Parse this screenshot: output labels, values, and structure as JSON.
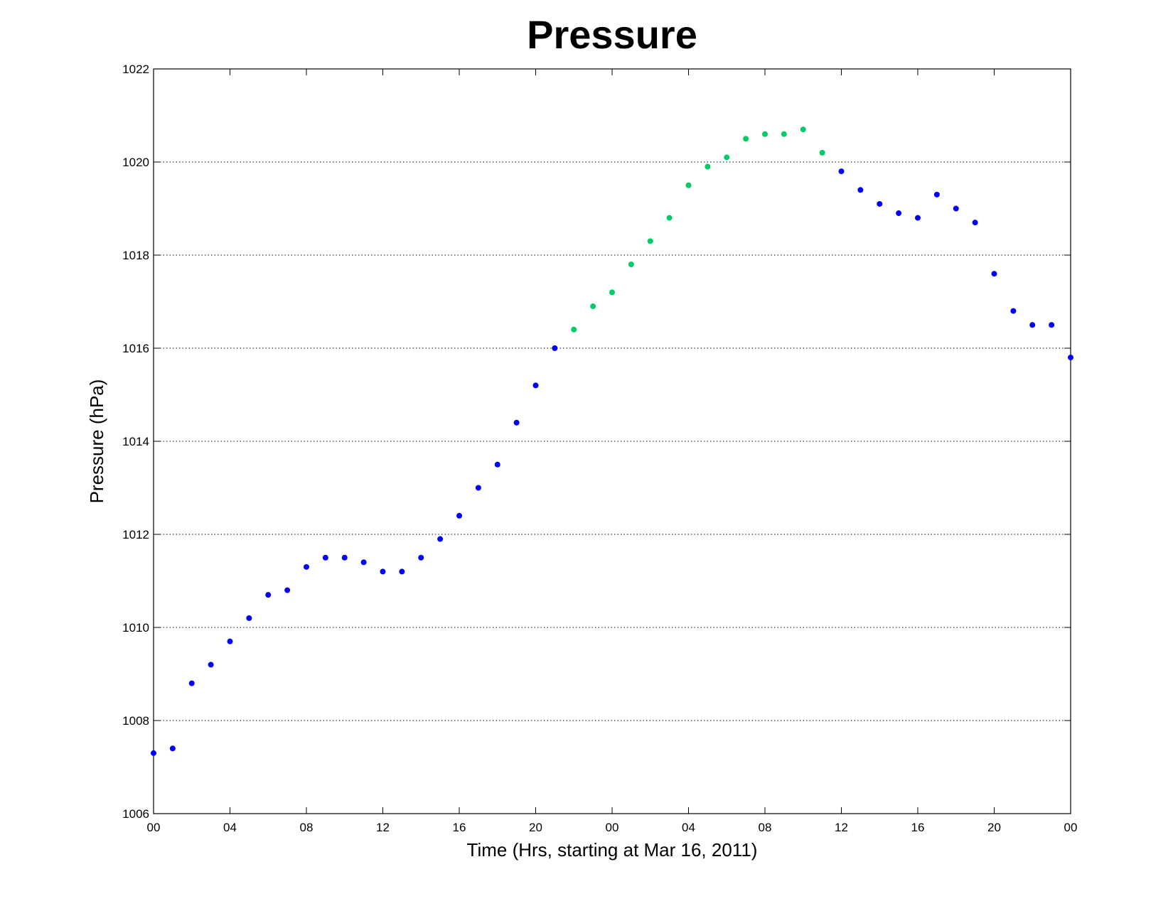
{
  "chart_data": {
    "type": "scatter",
    "title": "Pressure",
    "xlabel": "Time (Hrs, starting at Mar 16, 2011)",
    "ylabel": "Pressure (hPa)",
    "xlim": [
      0,
      48
    ],
    "ylim": [
      1006,
      1022
    ],
    "x_ticks": [
      0,
      4,
      8,
      12,
      16,
      20,
      24,
      28,
      32,
      36,
      40,
      44,
      48
    ],
    "x_tick_labels": [
      "00",
      "04",
      "08",
      "12",
      "16",
      "20",
      "00",
      "04",
      "08",
      "12",
      "16",
      "20",
      "00"
    ],
    "y_ticks": [
      1006,
      1008,
      1010,
      1012,
      1014,
      1016,
      1018,
      1020,
      1022
    ],
    "y_tick_labels": [
      "1006",
      "1008",
      "1010",
      "1012",
      "1014",
      "1016",
      "1018",
      "1020",
      "1022"
    ],
    "grid": "horizontal dotted",
    "x": [
      0,
      1,
      2,
      3,
      4,
      5,
      6,
      7,
      8,
      9,
      10,
      11,
      12,
      13,
      14,
      15,
      16,
      17,
      18,
      19,
      20,
      21,
      22,
      23,
      24,
      25,
      26,
      27,
      28,
      29,
      30,
      31,
      32,
      33,
      34,
      35,
      36,
      37,
      38,
      39,
      40,
      41,
      42,
      43,
      44,
      45,
      46,
      47,
      48
    ],
    "y": [
      1007.3,
      1007.4,
      1008.8,
      1009.2,
      1009.7,
      1010.2,
      1010.7,
      1010.8,
      1011.3,
      1011.5,
      1011.5,
      1011.4,
      1011.2,
      1011.2,
      1011.5,
      1011.9,
      1012.4,
      1013.0,
      1013.5,
      1014.4,
      1015.2,
      1016.0,
      1016.4,
      1016.9,
      1017.2,
      1017.8,
      1018.3,
      1018.8,
      1019.5,
      1019.9,
      1020.1,
      1020.5,
      1020.6,
      1020.6,
      1020.7,
      1020.2,
      1019.8,
      1019.4,
      1019.1,
      1018.9,
      1018.8,
      1019.3,
      1019.0,
      1018.7,
      1017.6,
      1016.8,
      1016.5,
      1016.5,
      1015.8
    ],
    "point_colors": [
      "#0000ff",
      "#0000ff",
      "#0000ff",
      "#0000ff",
      "#0000ff",
      "#0000ff",
      "#0000ff",
      "#0000ff",
      "#0000ff",
      "#0000ff",
      "#0000ff",
      "#0000ff",
      "#0000ff",
      "#0000ff",
      "#0000ff",
      "#0000ff",
      "#0000ff",
      "#0000ff",
      "#0000ff",
      "#0000ff",
      "#0000ff",
      "#0000ff",
      "#00cc66",
      "#00cc66",
      "#00cc66",
      "#00cc66",
      "#00cc66",
      "#00cc66",
      "#00cc66",
      "#00cc66",
      "#00cc66",
      "#00cc66",
      "#00cc66",
      "#00cc66",
      "#00cc66",
      "#00cc66",
      "#0000ff",
      "#0000ff",
      "#0000ff",
      "#0000ff",
      "#0000ff",
      "#0000ff",
      "#0000ff",
      "#0000ff",
      "#0000ff",
      "#0000ff",
      "#0000ff",
      "#0000ff",
      "#0000ff"
    ],
    "colors": {
      "primary": "#0000ff",
      "highlight": "#00cc66"
    }
  }
}
